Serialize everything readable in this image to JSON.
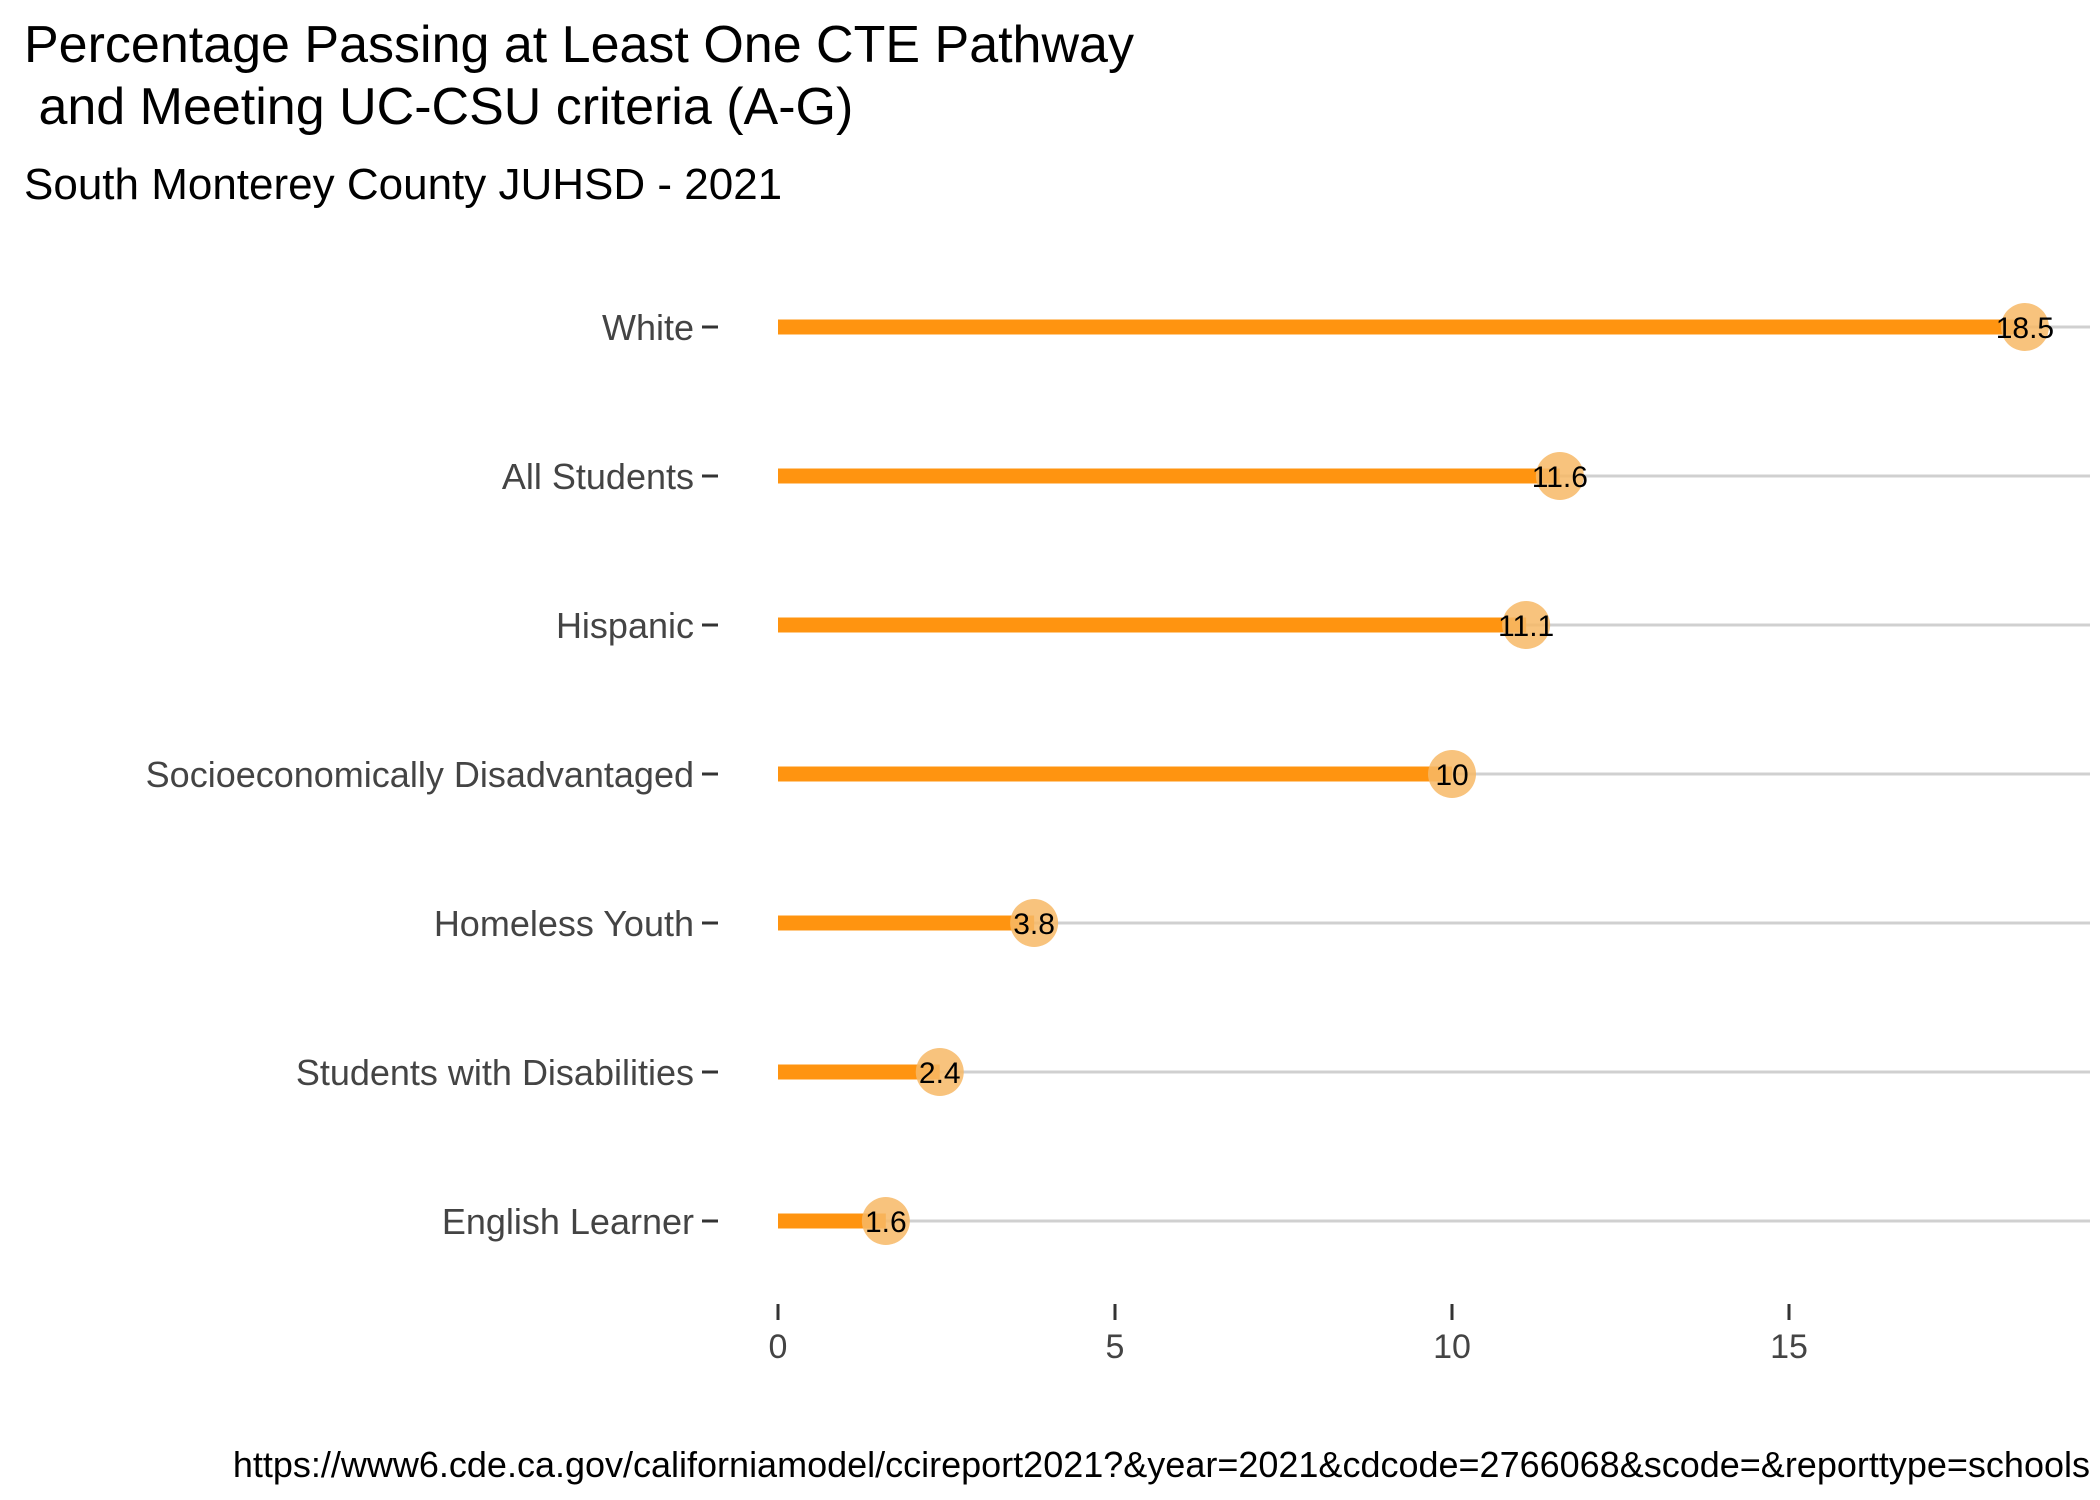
{
  "title": "Percentage Passing at Least One CTE Pathway\n and Meeting UC-CSU criteria (A-G)",
  "subtitle": "South Monterey County JUHSD - 2021",
  "caption": "https://www6.cde.ca.gov/californiamodel/ccireport2021?&year=2021&cdcode=2766068&scode=&reporttype=schools",
  "colors": {
    "segment": "#FF9410",
    "point": "#F7B966",
    "gridline": "#D0D0D0"
  },
  "chart_data": {
    "type": "bar",
    "orientation": "horizontal",
    "style": "lollipop",
    "categories": [
      "White",
      "All Students",
      "Hispanic",
      "Socioeconomically Disadvantaged",
      "Homeless Youth",
      "Students with Disabilities",
      "English Learner"
    ],
    "values": [
      18.5,
      11.6,
      11.1,
      10,
      3.8,
      2.4,
      1.6
    ],
    "value_labels": [
      "18.5",
      "11.6",
      "11.1",
      "10",
      "3.8",
      "2.4",
      "1.6"
    ],
    "x_ticks": [
      "0",
      "5",
      "10",
      "15"
    ],
    "xlim": [
      0,
      19.45
    ],
    "title": "Percentage Passing at Least One CTE Pathway\n and Meeting UC-CSU criteria (A-G)",
    "subtitle": "South Monterey County JUHSD - 2021",
    "xlabel": "",
    "ylabel": "",
    "grid": "horizontal major only",
    "legend": "none"
  }
}
